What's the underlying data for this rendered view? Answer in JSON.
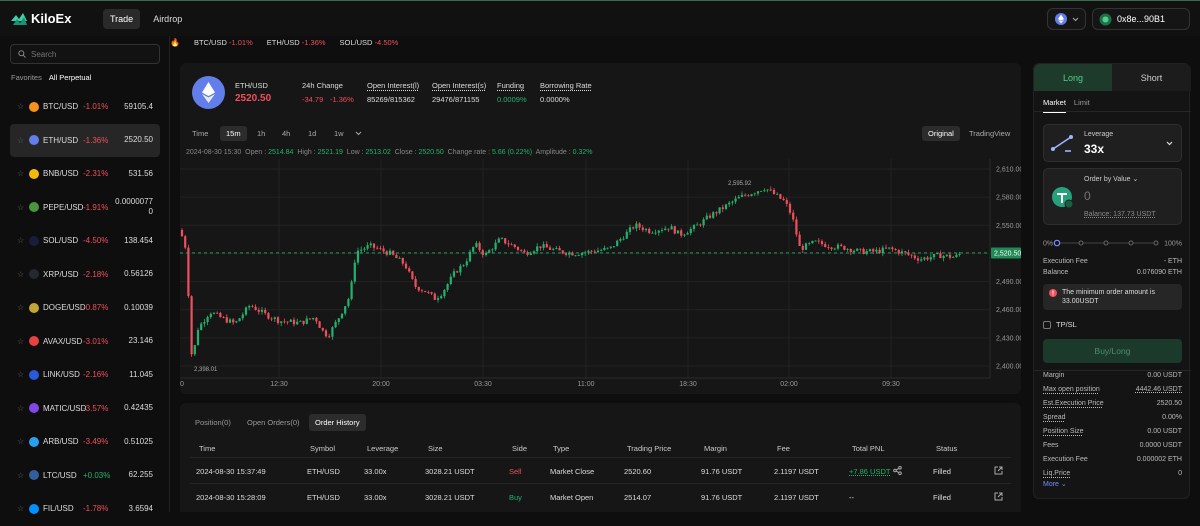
{
  "brand": {
    "name": "KiloEx"
  },
  "nav": {
    "tabs": [
      {
        "label": "Trade"
      },
      {
        "label": "Airdrop"
      }
    ]
  },
  "wallet": {
    "address": "0x8e...90B1"
  },
  "ticker": [
    {
      "pair": "BTC/USD",
      "change": "-1.01%"
    },
    {
      "pair": "ETH/USD",
      "change": "-1.36%"
    },
    {
      "pair": "SOL/USD",
      "change": "-4.50%"
    }
  ],
  "sidebar": {
    "search_placeholder": "Search",
    "filters": [
      "Favorites",
      "All Perpetual"
    ],
    "markets": [
      {
        "pair": "BTC/USD",
        "change": "-1.01%",
        "price": "59105.4",
        "dir": "down",
        "color": "#f7931a"
      },
      {
        "pair": "ETH/USD",
        "change": "-1.36%",
        "price": "2520.50",
        "dir": "down",
        "color": "#627eea"
      },
      {
        "pair": "BNB/USD",
        "change": "-2.31%",
        "price": "531.56",
        "dir": "down",
        "color": "#f0b90b"
      },
      {
        "pair": "PEPE/USD",
        "change": "-1.91%",
        "price": "0.0000077",
        "price2": "0",
        "dir": "down",
        "color": "#4c9540"
      },
      {
        "pair": "SOL/USD",
        "change": "-4.50%",
        "price": "138.454",
        "dir": "down",
        "color": "#1b1b3a"
      },
      {
        "pair": "XRP/USD",
        "change": "-2.18%",
        "price": "0.56126",
        "dir": "down",
        "color": "#23292f"
      },
      {
        "pair": "DOGE/USD",
        "change": "-0.87%",
        "price": "0.10039",
        "dir": "down",
        "color": "#c2a633"
      },
      {
        "pair": "AVAX/USD",
        "change": "-3.01%",
        "price": "23.146",
        "dir": "down",
        "color": "#e84142"
      },
      {
        "pair": "LINK/USD",
        "change": "-2.16%",
        "price": "11.045",
        "dir": "down",
        "color": "#2a5ada"
      },
      {
        "pair": "MATIC/USD",
        "change": "-3.57%",
        "price": "0.42435",
        "dir": "down",
        "color": "#8247e5"
      },
      {
        "pair": "ARB/USD",
        "change": "-3.49%",
        "price": "0.51025",
        "dir": "down",
        "color": "#28a0f0"
      },
      {
        "pair": "LTC/USD",
        "change": "+0.03%",
        "price": "62.255",
        "dir": "up",
        "color": "#345d9d"
      },
      {
        "pair": "FIL/USD",
        "change": "-1.78%",
        "price": "3.6594",
        "dir": "down",
        "color": "#0090ff"
      }
    ]
  },
  "header": {
    "pair": "ETH/USD",
    "price": "2520.50",
    "change_label": "24h Change",
    "change_abs": "-34.79",
    "change_pct": "-1.36%",
    "oi_l_label": "Open Interest(l)",
    "oi_l": "85269/815362",
    "oi_s_label": "Open Interest(s)",
    "oi_s": "29476/871155",
    "funding_label": "Funding",
    "funding": "0.0009%",
    "borrow_label": "Borrowing Rate",
    "borrow": "0.0000%"
  },
  "timeframes": {
    "label": "Time",
    "items": [
      "15m",
      "1h",
      "4h",
      "1d",
      "1w"
    ],
    "active": "15m",
    "views": [
      "Original",
      "TradingView"
    ]
  },
  "ohlc": {
    "date": "2024-08-30 15:30",
    "open_label": "Open",
    "open": "2514.84",
    "high_label": "High",
    "high": "2521.19",
    "low_label": "Low",
    "low": "2513.02",
    "close_label": "Close",
    "close": "2520.50",
    "rate_label": "Change rate",
    "rate": "5.66 (0.22%)",
    "amp_label": "Amplitude",
    "amp": "0.32%"
  },
  "chart_data": {
    "type": "candlestick",
    "y_ticks": [
      "2,610.00",
      "2,580.00",
      "2,550.00",
      "2,520.00",
      "2,490.00",
      "2,460.00",
      "2,430.00",
      "2,400.00"
    ],
    "x_ticks": [
      "12:30",
      "20:00",
      "03:30",
      "11:00",
      "18:30",
      "02:00",
      "09:30"
    ],
    "x_edge_label": "0",
    "ylim": [
      2400,
      2610
    ],
    "current_price": "2,520.50",
    "high_marker": "2,595.92",
    "low_marker": "2,398.01",
    "grid": true
  },
  "orders": {
    "tabs": [
      "Position(0)",
      "Open Orders(0)",
      "Order History"
    ],
    "active_tab": "Order History",
    "headers": [
      "Time",
      "Symbol",
      "Leverage",
      "Size",
      "Side",
      "Type",
      "Trading Price",
      "Margin",
      "Fee",
      "Total PNL",
      "Status"
    ],
    "rows": [
      {
        "time": "2024-08-30 15:37:49",
        "symbol": "ETH/USD",
        "leverage": "33.00x",
        "size": "3028.21 USDT",
        "side": "Sell",
        "type": "Market Close",
        "price": "2520.60",
        "margin": "91.76 USDT",
        "fee": "2.1197 USDT",
        "pnl": "+7.86 USDT",
        "status": "Filled"
      },
      {
        "time": "2024-08-30 15:28:09",
        "symbol": "ETH/USD",
        "leverage": "33.00x",
        "size": "3028.21 USDT",
        "side": "Buy",
        "type": "Market Open",
        "price": "2514.07",
        "margin": "91.76 USDT",
        "fee": "2.1197 USDT",
        "pnl": "--",
        "status": "Filled"
      }
    ]
  },
  "trade": {
    "long_label": "Long",
    "short_label": "Short",
    "order_types": [
      "Market",
      "Limit"
    ],
    "leverage_label": "Leverage",
    "leverage": "33x",
    "order_by_label": "Order by Value",
    "amount_placeholder": "0",
    "balance_label": "Balance: 137.73 USDT",
    "slider_min": "0%",
    "slider_max": "100%",
    "slider_value": 0,
    "exec_fee_label": "Execution Fee",
    "exec_fee": "- ETH",
    "balance_row_label": "Balance",
    "balance_row": "0.076090 ETH",
    "warning": "The minimum order amount is 33.00USDT",
    "tpsl": "TP/SL",
    "buy_button": "Buy/Long",
    "details": [
      {
        "k": "Margin",
        "v": "0.00 USDT",
        "ul": false
      },
      {
        "k": "Max open position",
        "v": "4442.46 USDT",
        "ul": true
      },
      {
        "k": "Est.Execution Price",
        "v": "2520.50",
        "ul": true
      },
      {
        "k": "Spread",
        "v": "0.00%",
        "ul": true
      },
      {
        "k": "Position Size",
        "v": "0.00 USDT",
        "ul": true
      },
      {
        "k": "Fees",
        "v": "0.0000 USDT",
        "ul": false
      },
      {
        "k": "Execution Fee",
        "v": "0.000002 ETH",
        "ul": false
      },
      {
        "k": "Liq.Price",
        "v": "0",
        "ul": true
      }
    ],
    "more": "More"
  }
}
